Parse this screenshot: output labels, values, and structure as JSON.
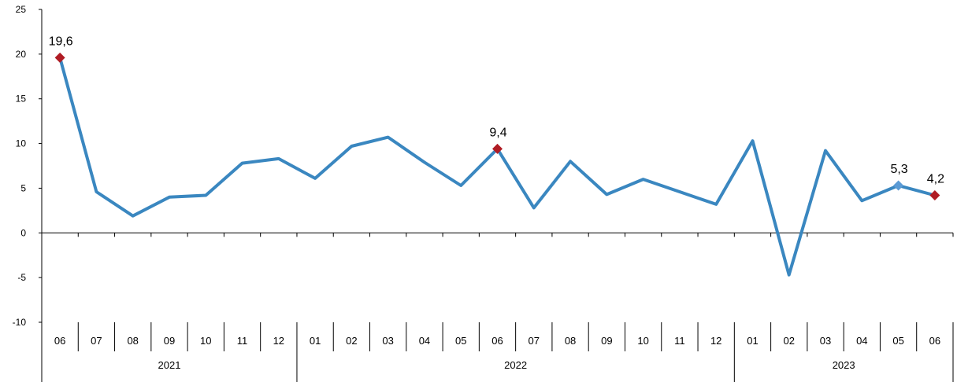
{
  "chart_data": {
    "type": "line",
    "title": "",
    "xlabel": "",
    "ylabel": "",
    "ylim": [
      -10,
      25
    ],
    "yticks": [
      -10,
      -5,
      0,
      5,
      10,
      15,
      20,
      25
    ],
    "grid": false,
    "categories": [
      "06",
      "07",
      "08",
      "09",
      "10",
      "11",
      "12",
      "01",
      "02",
      "03",
      "04",
      "05",
      "06",
      "07",
      "08",
      "09",
      "10",
      "11",
      "12",
      "01",
      "02",
      "03",
      "04",
      "05",
      "06"
    ],
    "year_groups": [
      {
        "label": "2021",
        "start": 0,
        "end": 6
      },
      {
        "label": "2022",
        "start": 7,
        "end": 18
      },
      {
        "label": "2023",
        "start": 19,
        "end": 24
      }
    ],
    "series": [
      {
        "values": [
          19.6,
          4.6,
          1.9,
          4.0,
          4.2,
          7.8,
          8.3,
          6.1,
          9.7,
          10.7,
          7.9,
          5.3,
          9.4,
          2.8,
          8.0,
          4.3,
          6.0,
          4.6,
          3.2,
          10.3,
          -4.7,
          9.2,
          3.6,
          5.3,
          4.2
        ],
        "color": "#3a87c0"
      }
    ],
    "annotations": [
      {
        "index": 0,
        "label": "19,6",
        "color": "#b01c24"
      },
      {
        "index": 12,
        "label": "9,4",
        "color": "#b01c24"
      },
      {
        "index": 23,
        "label": "5,3",
        "color": "#5b9bd5"
      },
      {
        "index": 24,
        "label": "4,2",
        "color": "#b01c24"
      }
    ]
  }
}
